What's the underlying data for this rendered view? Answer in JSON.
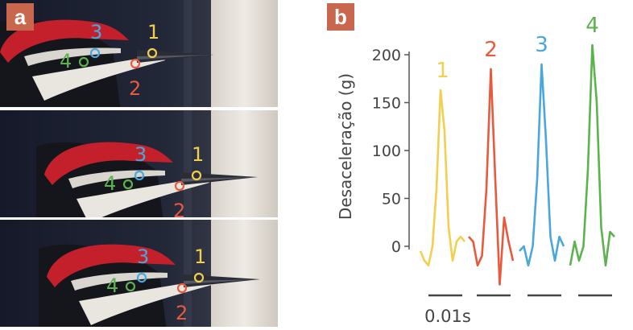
{
  "panel_a": {
    "badge": "a",
    "frames": [
      {
        "marker_labels": [
          "1",
          "2",
          "3",
          "4"
        ]
      },
      {
        "marker_labels": [
          "1",
          "2",
          "3",
          "4"
        ]
      },
      {
        "marker_labels": [
          "1",
          "2",
          "3",
          "4"
        ]
      }
    ]
  },
  "panel_b": {
    "badge": "b"
  },
  "colors": {
    "sensor_1": "#f2cf4f",
    "sensor_2": "#e85a3e",
    "sensor_3": "#4aa7db",
    "sensor_4": "#5cb24f",
    "badge": "#c8664e",
    "axis": "#555555"
  },
  "chart_data": {
    "type": "line",
    "title": "",
    "xlabel": "",
    "ylabel": "Desaceleração (g)",
    "ylim": [
      -40,
      210
    ],
    "yticks": [
      "0",
      "50",
      "100",
      "150",
      "200"
    ],
    "scale_bar_label": "0.01s",
    "series": [
      {
        "name": "1",
        "peak": 163,
        "values": [
          -5,
          -15,
          -20,
          0,
          60,
          163,
          120,
          20,
          -15,
          5,
          10,
          5
        ]
      },
      {
        "name": "2",
        "peak": 185,
        "values": [
          10,
          5,
          -20,
          -10,
          60,
          185,
          70,
          -40,
          30,
          5,
          -15
        ]
      },
      {
        "name": "3",
        "peak": 190,
        "values": [
          -5,
          0,
          -20,
          0,
          70,
          190,
          110,
          10,
          -15,
          10,
          0
        ]
      },
      {
        "name": "4",
        "peak": 210,
        "values": [
          -20,
          5,
          -15,
          0,
          80,
          210,
          150,
          20,
          -20,
          15,
          10
        ]
      }
    ]
  }
}
